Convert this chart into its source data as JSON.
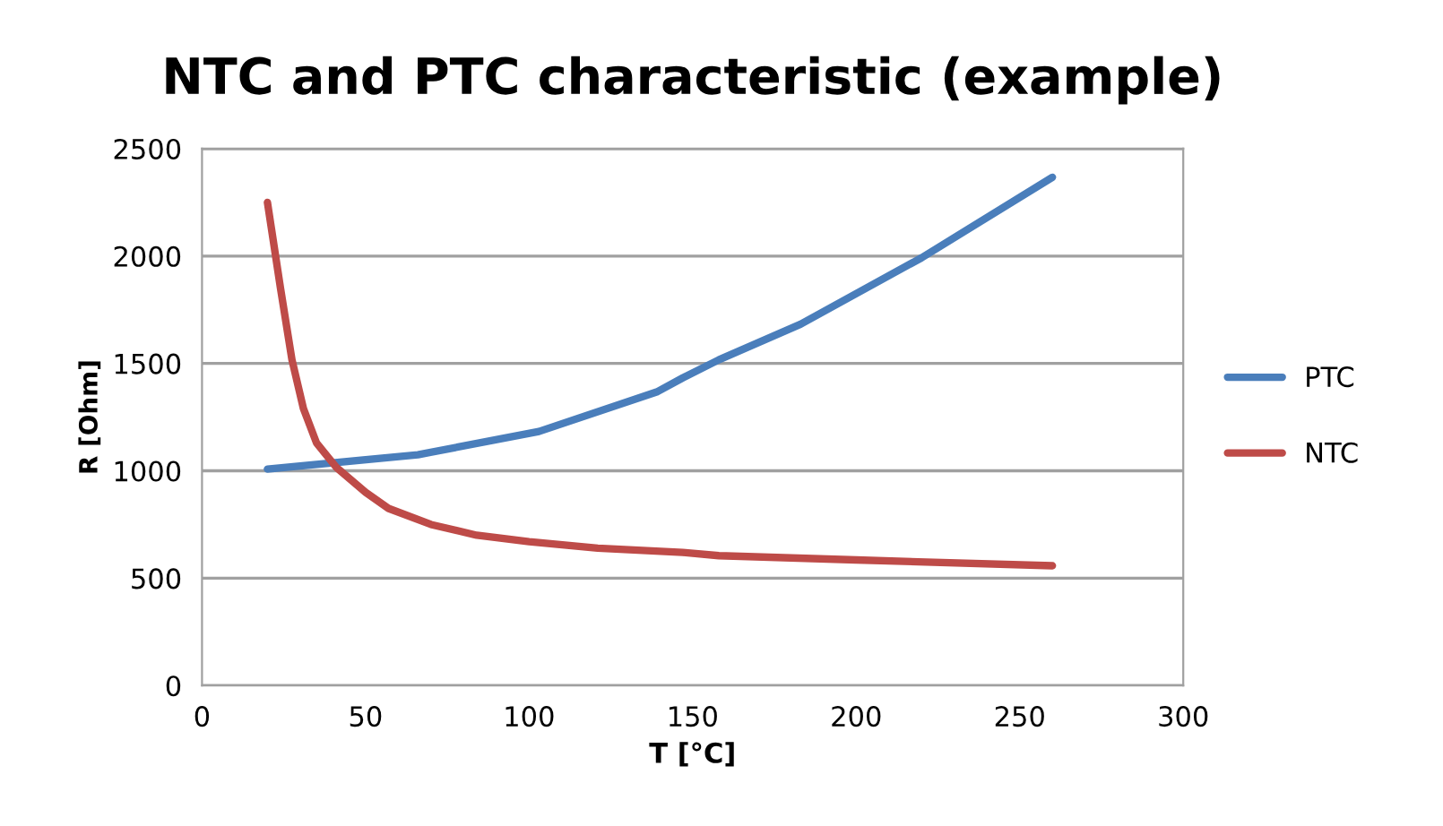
{
  "chart_data": {
    "type": "line",
    "title": "NTC and PTC characteristic (example)",
    "xlabel": "T [°C]",
    "ylabel": "R [Ohm]",
    "xlim": [
      0,
      300
    ],
    "xticks": [
      0,
      50,
      100,
      150,
      200,
      250,
      300
    ],
    "ylim": [
      0,
      2500
    ],
    "yticks": [
      0,
      500,
      1000,
      1500,
      2000,
      2500
    ],
    "grid": "y",
    "legend": "right",
    "marker": "none",
    "line_style": "solid",
    "series": [
      {
        "name": "PTC",
        "color": "#4a7ebb",
        "x": [
          20,
          66,
          103,
          139,
          147,
          158,
          183,
          220,
          260
        ],
        "values": [
          1008,
          1075,
          1183,
          1367,
          1433,
          1517,
          1683,
          1992,
          2367
        ]
      },
      {
        "name": "NTC",
        "color": "#be4b48",
        "x": [
          20,
          24,
          27.5,
          31,
          35,
          41,
          50,
          57,
          70,
          84,
          100,
          121,
          147,
          158,
          200,
          260
        ],
        "values": [
          2250,
          1850,
          1517,
          1290,
          1130,
          1017,
          900,
          825,
          750,
          700,
          670,
          640,
          620,
          605,
          585,
          558
        ]
      }
    ]
  }
}
